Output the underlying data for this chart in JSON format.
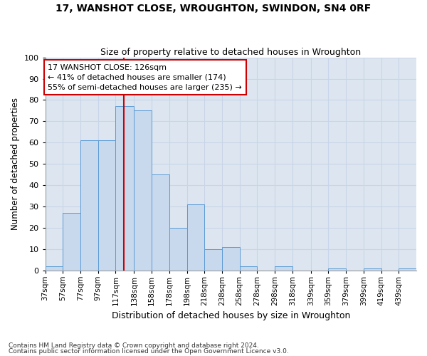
{
  "title": "17, WANSHOT CLOSE, WROUGHTON, SWINDON, SN4 0RF",
  "subtitle": "Size of property relative to detached houses in Wroughton",
  "xlabel": "Distribution of detached houses by size in Wroughton",
  "ylabel": "Number of detached properties",
  "bar_labels": [
    "37sqm",
    "57sqm",
    "77sqm",
    "97sqm",
    "117sqm",
    "138sqm",
    "158sqm",
    "178sqm",
    "198sqm",
    "218sqm",
    "238sqm",
    "258sqm",
    "278sqm",
    "298sqm",
    "318sqm",
    "339sqm",
    "359sqm",
    "379sqm",
    "399sqm",
    "419sqm",
    "439sqm"
  ],
  "bar_values": [
    2,
    27,
    61,
    61,
    77,
    75,
    45,
    20,
    31,
    10,
    11,
    2,
    0,
    2,
    0,
    0,
    1,
    0,
    1,
    0,
    1
  ],
  "tick_values": [
    37,
    57,
    77,
    97,
    117,
    138,
    158,
    178,
    198,
    218,
    238,
    258,
    278,
    298,
    318,
    339,
    359,
    379,
    399,
    419,
    439
  ],
  "bar_color": "#c8d9ee",
  "bar_edge_color": "#5b9bd5",
  "property_sqm": 126,
  "annotation_text": "17 WANSHOT CLOSE: 126sqm\n← 41% of detached houses are smaller (174)\n55% of semi-detached houses are larger (235) →",
  "annotation_box_color": "#ffffff",
  "annotation_box_edge": "#cc0000",
  "vline_color": "#cc0000",
  "grid_color": "#c8d4e8",
  "background_color": "#dde6f0",
  "plot_bg": "#dde6f0",
  "ylim": [
    0,
    100
  ],
  "footnote1": "Contains HM Land Registry data © Crown copyright and database right 2024.",
  "footnote2": "Contains public sector information licensed under the Open Government Licence v3.0."
}
